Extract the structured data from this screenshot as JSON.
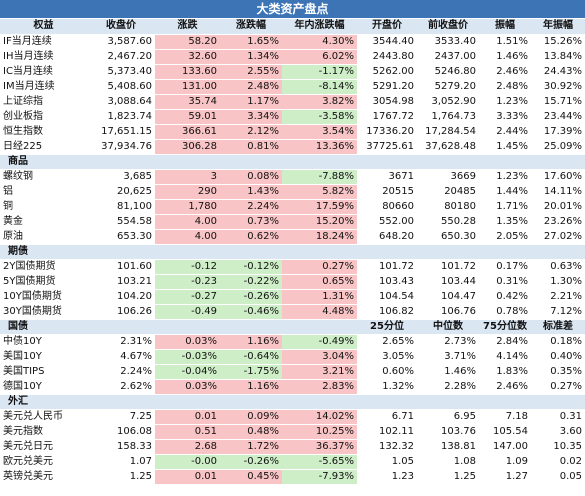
{
  "title": "大类资产盘点",
  "colors": {
    "header_blue": "#3d74b5",
    "section_bg": "#dbe6f3",
    "up_red": "#f9c4c6",
    "down_green": "#cdeec7"
  },
  "header": [
    "权益",
    "收盘价",
    "涨跌",
    "涨跌幅",
    "年内涨跌幅",
    "开盘价",
    "前收盘价",
    "振幅",
    "年振幅"
  ],
  "equity": [
    [
      "IF当月连续",
      "3,587.60",
      "58.20",
      "1.65%",
      "4.30%",
      "3544.40",
      "3533.40",
      "1.51%",
      "15.26%"
    ],
    [
      "IH当月连续",
      "2,467.20",
      "32.60",
      "1.34%",
      "6.02%",
      "2443.80",
      "2437.00",
      "1.46%",
      "13.84%"
    ],
    [
      "IC当月连续",
      "5,373.40",
      "133.60",
      "2.55%",
      "-1.17%",
      "5262.00",
      "5246.80",
      "2.46%",
      "24.43%"
    ],
    [
      "IM当月连续",
      "5,408.60",
      "131.00",
      "2.48%",
      "-8.14%",
      "5291.20",
      "5279.20",
      "2.48%",
      "30.92%"
    ],
    [
      "上证综指",
      "3,088.64",
      "35.74",
      "1.17%",
      "3.82%",
      "3054.98",
      "3,052.90",
      "1.23%",
      "15.71%"
    ],
    [
      "创业板指",
      "1,823.74",
      "59.01",
      "3.34%",
      "-3.58%",
      "1767.72",
      "1,764.73",
      "3.33%",
      "23.44%"
    ],
    [
      "恒生指数",
      "17,651.15",
      "366.61",
      "2.12%",
      "3.54%",
      "17336.20",
      "17,284.54",
      "2.44%",
      "17.39%"
    ],
    [
      "日经225",
      "37,934.76",
      "306.28",
      "0.81%",
      "13.36%",
      "37725.61",
      "37,628.48",
      "1.45%",
      "25.09%"
    ]
  ],
  "commodity_section": "商品",
  "commodity": [
    [
      "螺纹钢",
      "3,685",
      "3",
      "0.08%",
      "-7.88%",
      "3671",
      "3669",
      "1.23%",
      "17.60%"
    ],
    [
      "铝",
      "20,625",
      "290",
      "1.43%",
      "5.82%",
      "20515",
      "20485",
      "1.44%",
      "14.11%"
    ],
    [
      "铜",
      "81,100",
      "1,780",
      "2.24%",
      "17.59%",
      "80660",
      "80180",
      "1.71%",
      "20.01%"
    ],
    [
      "黄金",
      "554.58",
      "4.00",
      "0.73%",
      "15.20%",
      "552.00",
      "550.28",
      "1.35%",
      "23.26%"
    ],
    [
      "原油",
      "653.30",
      "4.00",
      "0.62%",
      "18.24%",
      "648.20",
      "650.30",
      "2.05%",
      "27.02%"
    ]
  ],
  "futures_section": "期债",
  "futures": [
    [
      "2Y国债期货",
      "101.60",
      "-0.12",
      "-0.12%",
      "0.27%",
      "101.72",
      "101.72",
      "0.17%",
      "0.63%"
    ],
    [
      "5Y国债期货",
      "103.21",
      "-0.23",
      "-0.22%",
      "0.65%",
      "103.43",
      "103.44",
      "0.31%",
      "1.30%"
    ],
    [
      "10Y国债期货",
      "104.20",
      "-0.27",
      "-0.26%",
      "1.31%",
      "104.54",
      "104.47",
      "0.42%",
      "2.21%"
    ],
    [
      "30Y国债期货",
      "106.26",
      "-0.49",
      "-0.46%",
      "4.48%",
      "106.82",
      "106.76",
      "0.78%",
      "7.12%"
    ]
  ],
  "bond_section": "国债",
  "bond_subheader": [
    "25分位",
    "中位数",
    "75分位数",
    "标准差"
  ],
  "bonds": [
    [
      "中债10Y",
      "2.31%",
      "0.03%",
      "1.16%",
      "-0.49%",
      "2.65%",
      "2.73%",
      "2.84%",
      "0.18%"
    ],
    [
      "美国10Y",
      "4.67%",
      "-0.03%",
      "-0.64%",
      "3.04%",
      "3.05%",
      "3.71%",
      "4.14%",
      "0.40%"
    ],
    [
      "美国TIPS",
      "2.24%",
      "-0.04%",
      "-1.75%",
      "3.21%",
      "0.60%",
      "1.46%",
      "1.83%",
      "0.35%"
    ],
    [
      "德国10Y",
      "2.62%",
      "0.03%",
      "1.16%",
      "2.83%",
      "1.32%",
      "2.28%",
      "2.46%",
      "0.27%"
    ]
  ],
  "fx_section": "外汇",
  "fx": [
    [
      "美元兑人民币",
      "7.25",
      "0.01",
      "0.09%",
      "14.02%",
      "6.71",
      "6.95",
      "7.18",
      "0.31"
    ],
    [
      "美元指数",
      "106.08",
      "0.51",
      "0.48%",
      "10.25%",
      "102.11",
      "103.76",
      "105.54",
      "3.60"
    ],
    [
      "美元兑日元",
      "158.33",
      "2.68",
      "1.72%",
      "36.37%",
      "132.32",
      "138.81",
      "147.00",
      "10.35"
    ],
    [
      "欧元兑美元",
      "1.07",
      "-0.00",
      "-0.26%",
      "-5.65%",
      "1.05",
      "1.08",
      "1.09",
      "0.02"
    ],
    [
      "英镑兑美元",
      "1.25",
      "0.01",
      "0.45%",
      "-7.93%",
      "1.23",
      "1.25",
      "1.27",
      "0.05"
    ]
  ]
}
